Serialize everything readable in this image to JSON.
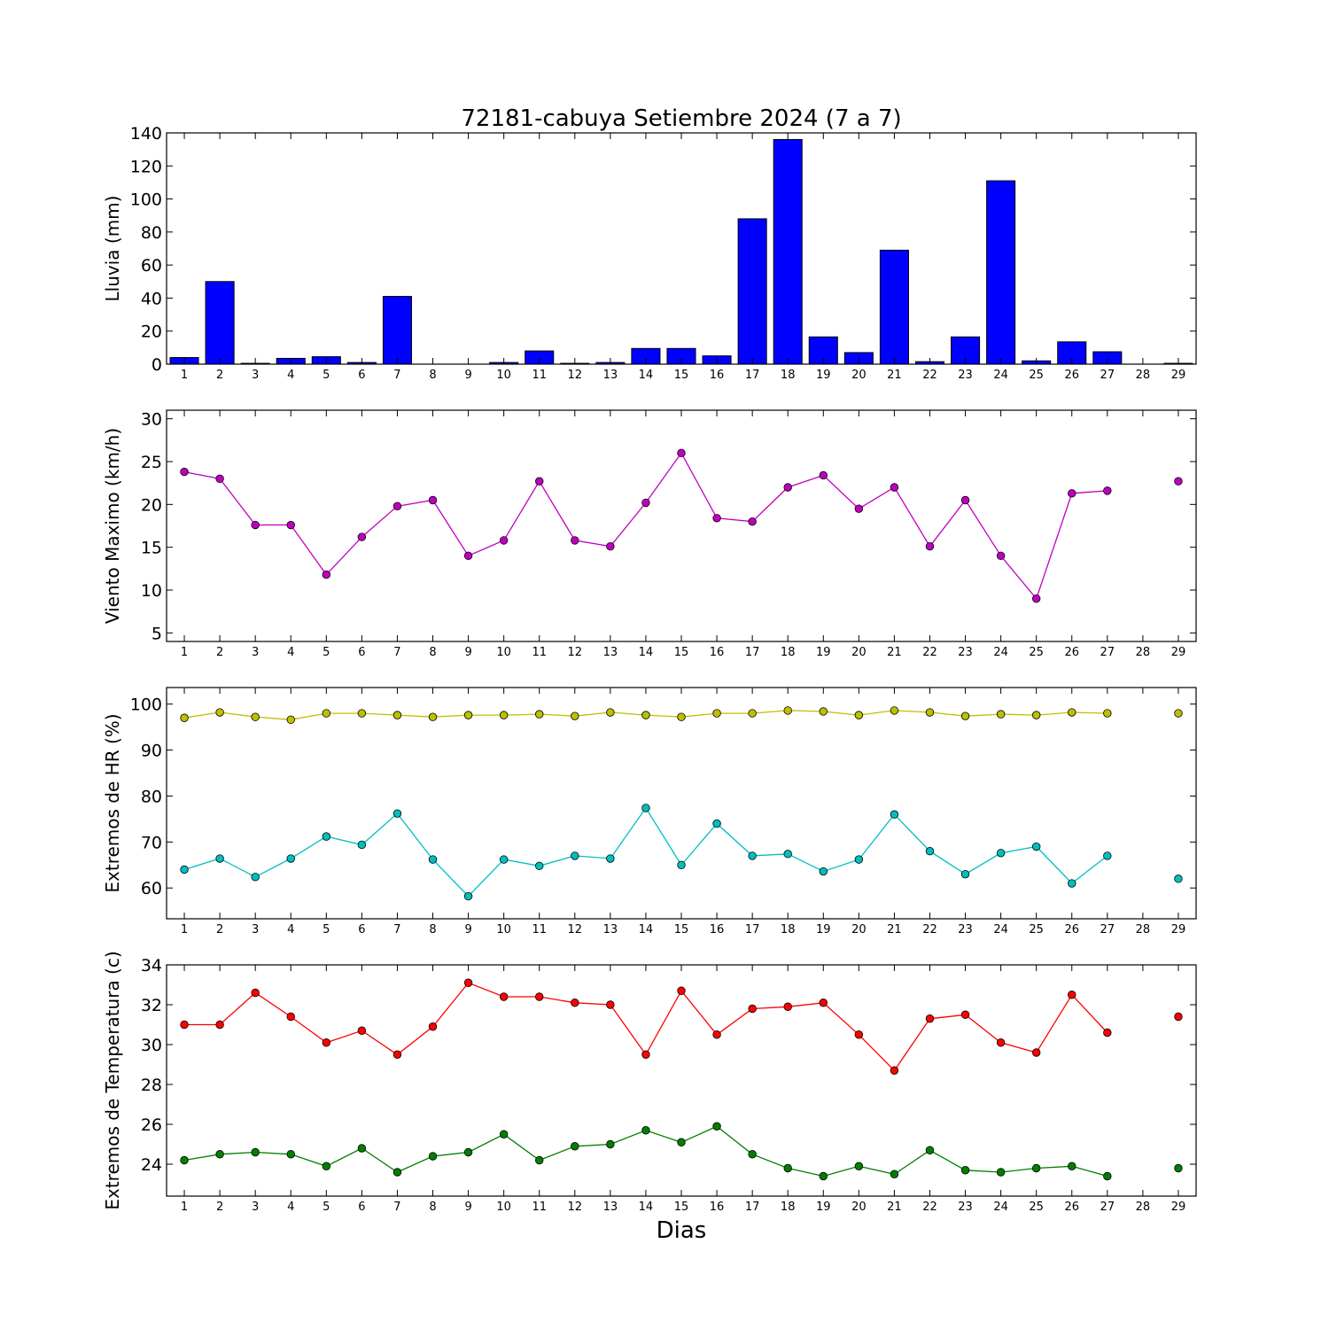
{
  "title": "72181-cabuya Setiembre 2024  (7 a 7)",
  "xlabel": "Dias",
  "chart_data": [
    {
      "type": "bar",
      "ylabel": "Lluvia (mm)",
      "ylim": [
        0,
        140
      ],
      "yticks": [
        0,
        20,
        40,
        60,
        80,
        100,
        120,
        140
      ],
      "categories": [
        "1",
        "2",
        "3",
        "4",
        "5",
        "6",
        "7",
        "8",
        "9",
        "10",
        "11",
        "12",
        "13",
        "14",
        "15",
        "16",
        "17",
        "18",
        "19",
        "20",
        "21",
        "22",
        "23",
        "24",
        "25",
        "26",
        "27",
        "28",
        "29"
      ],
      "color": "#0000ff",
      "values": [
        4,
        50,
        0.5,
        3.5,
        4.5,
        1,
        41,
        0,
        0,
        1,
        8,
        0.5,
        1,
        9.5,
        9.5,
        5,
        88,
        136,
        16.5,
        7,
        69,
        1.5,
        16.5,
        111,
        2,
        13.5,
        7.5,
        0,
        0.5
      ]
    },
    {
      "type": "line",
      "ylabel": "Viento Maximo (km/h)",
      "ylim": [
        4,
        31
      ],
      "yticks": [
        5,
        10,
        15,
        20,
        25,
        30
      ],
      "x": [
        1,
        2,
        3,
        4,
        5,
        6,
        7,
        8,
        9,
        10,
        11,
        12,
        13,
        14,
        15,
        16,
        17,
        18,
        19,
        20,
        21,
        22,
        23,
        24,
        25,
        26,
        27,
        28,
        29
      ],
      "series": [
        {
          "color": "#bf00bf",
          "values": [
            23.8,
            23.0,
            17.6,
            17.6,
            11.8,
            16.2,
            19.8,
            20.5,
            14.0,
            15.8,
            22.7,
            15.8,
            15.1,
            20.2,
            26.0,
            18.4,
            18.0,
            22.0,
            23.4,
            19.5,
            22.0,
            15.1,
            20.5,
            14.0,
            9.0,
            21.3,
            21.6,
            null,
            22.7
          ]
        }
      ]
    },
    {
      "type": "line",
      "ylabel": "Extremos de HR (%)",
      "ylim": [
        53.3,
        103.6
      ],
      "yticks": [
        60,
        70,
        80,
        90,
        100
      ],
      "x": [
        1,
        2,
        3,
        4,
        5,
        6,
        7,
        8,
        9,
        10,
        11,
        12,
        13,
        14,
        15,
        16,
        17,
        18,
        19,
        20,
        21,
        22,
        23,
        24,
        25,
        26,
        27,
        28,
        29
      ],
      "series": [
        {
          "color": "#bfbf00",
          "values": [
            97.0,
            98.2,
            97.2,
            96.6,
            98.0,
            98.0,
            97.6,
            97.2,
            97.6,
            97.6,
            97.8,
            97.4,
            98.2,
            97.6,
            97.2,
            98.0,
            98.0,
            98.6,
            98.4,
            97.6,
            98.6,
            98.2,
            97.4,
            97.8,
            97.6,
            98.2,
            98.0,
            null,
            98.0
          ]
        },
        {
          "color": "#00bfbf",
          "values": [
            64.0,
            66.4,
            62.4,
            66.4,
            71.2,
            69.4,
            76.2,
            66.2,
            58.2,
            66.2,
            64.8,
            67.0,
            66.4,
            77.4,
            65.0,
            74.0,
            67.0,
            67.4,
            63.6,
            66.2,
            76.0,
            68.0,
            63.0,
            67.6,
            69.0,
            61.0,
            67.0,
            null,
            62.0
          ]
        }
      ]
    },
    {
      "type": "line",
      "ylabel": "Extremos de Temperatura (c)",
      "ylim": [
        22.4,
        34.0
      ],
      "yticks": [
        24,
        26,
        28,
        30,
        32,
        34
      ],
      "x": [
        1,
        2,
        3,
        4,
        5,
        6,
        7,
        8,
        9,
        10,
        11,
        12,
        13,
        14,
        15,
        16,
        17,
        18,
        19,
        20,
        21,
        22,
        23,
        24,
        25,
        26,
        27,
        28,
        29
      ],
      "series": [
        {
          "color": "#ff0000",
          "values": [
            31.0,
            31.0,
            32.6,
            31.4,
            30.1,
            30.7,
            29.5,
            30.9,
            33.1,
            32.4,
            32.4,
            32.1,
            32.0,
            29.5,
            32.7,
            30.5,
            31.8,
            31.9,
            32.1,
            30.5,
            28.7,
            31.3,
            31.5,
            30.1,
            29.6,
            32.5,
            30.6,
            null,
            31.4
          ]
        },
        {
          "color": "#008000",
          "values": [
            24.2,
            24.5,
            24.6,
            24.5,
            23.9,
            24.8,
            23.6,
            24.4,
            24.6,
            25.5,
            24.2,
            24.9,
            25.0,
            25.7,
            25.1,
            25.9,
            24.5,
            23.8,
            23.4,
            23.9,
            23.5,
            24.7,
            23.7,
            23.6,
            23.8,
            23.9,
            23.4,
            null,
            23.8
          ]
        }
      ]
    }
  ]
}
